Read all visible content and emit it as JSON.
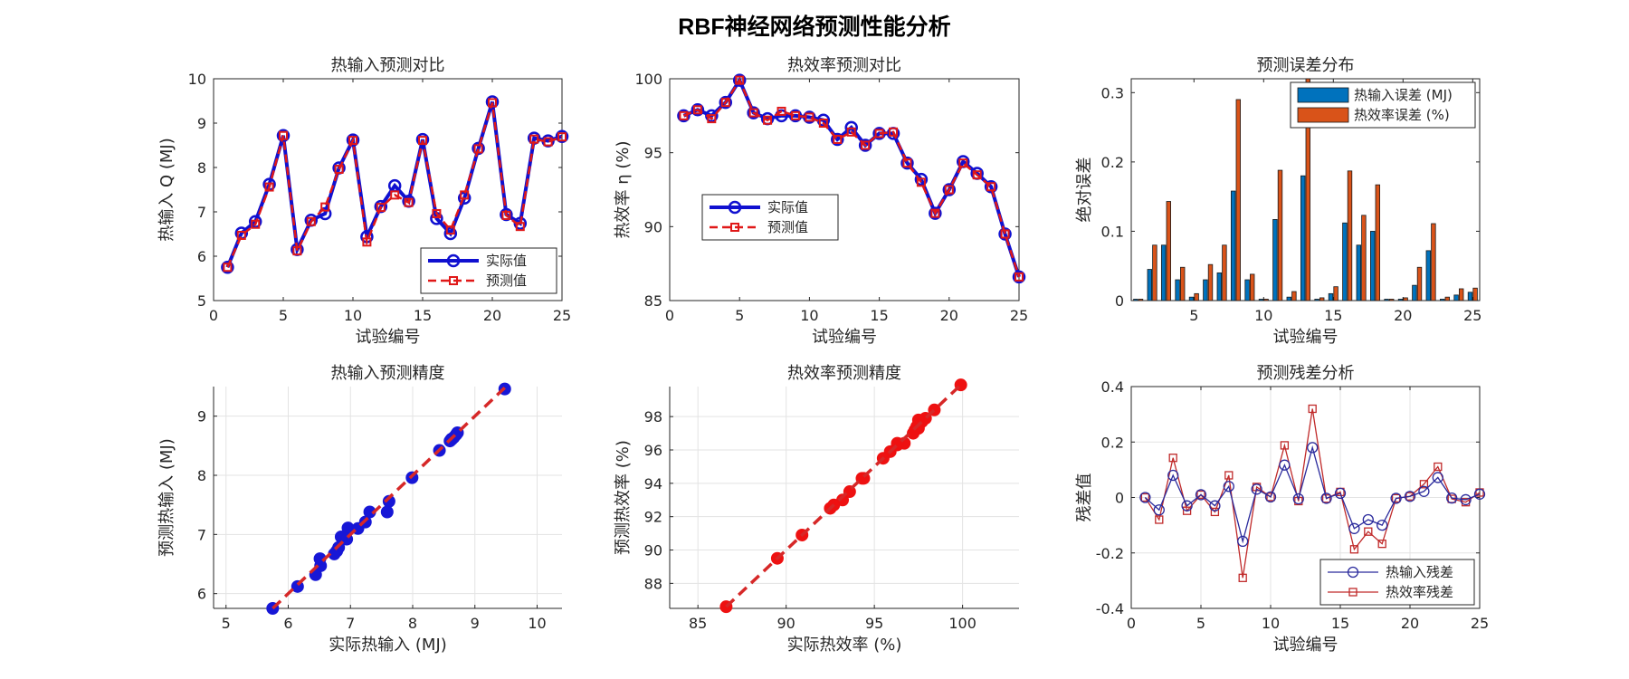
{
  "figure": {
    "title": "RBF神经网络预测性能分析"
  },
  "colors": {
    "blue": "#1010d0",
    "red": "#e01818",
    "edge_blue": "#0072BD",
    "edge_orange": "#D95319",
    "scatter_blue": "#1717d6",
    "scatter_red": "#ee1111",
    "res_blue": "#2a2a9c",
    "res_red": "#c02a2a"
  },
  "chart_data": [
    {
      "id": "p1",
      "type": "line",
      "title": "热输入预测对比",
      "xlabel": "试验编号",
      "ylabel": "热输入 Q (MJ)",
      "xlim": [
        0,
        25
      ],
      "ylim": [
        5,
        10
      ],
      "xticks": [
        0,
        5,
        10,
        15,
        20,
        25
      ],
      "yticks": [
        5,
        6,
        7,
        8,
        9,
        10
      ],
      "legend_position": "bottom-right",
      "x": [
        1,
        2,
        3,
        4,
        5,
        6,
        7,
        8,
        9,
        10,
        11,
        12,
        13,
        14,
        15,
        16,
        17,
        18,
        19,
        20,
        21,
        22,
        23,
        24,
        25
      ],
      "series": [
        {
          "name": "实际值",
          "values": [
            5.75,
            6.52,
            6.78,
            7.62,
            8.72,
            6.15,
            6.81,
            6.96,
            7.99,
            8.62,
            6.44,
            7.12,
            7.59,
            7.24,
            8.63,
            6.85,
            6.51,
            7.31,
            8.43,
            9.48,
            6.94,
            6.74,
            8.66,
            8.6,
            8.7
          ]
        },
        {
          "name": "预测值",
          "values": [
            5.75,
            6.47,
            6.72,
            7.56,
            8.72,
            6.12,
            6.78,
            7.11,
            7.96,
            8.61,
            6.32,
            7.1,
            7.38,
            7.21,
            8.61,
            6.96,
            6.59,
            7.38,
            8.42,
            9.46,
            6.92,
            6.67,
            8.64,
            8.58,
            8.69
          ]
        }
      ]
    },
    {
      "id": "p2",
      "type": "line",
      "title": "热效率预测对比",
      "xlabel": "试验编号",
      "ylabel": "热效率 η (%)",
      "xlim": [
        0,
        25
      ],
      "ylim": [
        85,
        100
      ],
      "xticks": [
        0,
        5,
        10,
        15,
        20,
        25
      ],
      "yticks": [
        85,
        90,
        95,
        100
      ],
      "legend_position": "middle-left",
      "x": [
        1,
        2,
        3,
        4,
        5,
        6,
        7,
        8,
        9,
        10,
        11,
        12,
        13,
        14,
        15,
        16,
        17,
        18,
        19,
        20,
        21,
        22,
        23,
        24,
        25
      ],
      "series": [
        {
          "name": "实际值",
          "values": [
            97.5,
            97.9,
            97.5,
            98.4,
            99.9,
            97.7,
            97.3,
            97.5,
            97.5,
            97.4,
            97.2,
            95.9,
            96.7,
            95.5,
            96.3,
            96.3,
            94.3,
            93.2,
            90.9,
            92.5,
            94.4,
            93.6,
            92.7,
            89.5,
            86.6
          ]
        },
        {
          "name": "预测值",
          "values": [
            97.5,
            97.9,
            97.3,
            98.4,
            99.9,
            97.7,
            97.2,
            97.8,
            97.5,
            97.4,
            97.0,
            95.9,
            96.4,
            95.5,
            96.3,
            96.4,
            94.3,
            93.0,
            90.9,
            92.5,
            94.3,
            93.5,
            92.7,
            89.5,
            86.6
          ]
        }
      ]
    },
    {
      "id": "p3",
      "type": "bar",
      "title": "预测误差分布",
      "xlabel": "试验编号",
      "ylabel": "绝对误差",
      "xlim": [
        0.5,
        25.5
      ],
      "ylim": [
        0,
        0.32
      ],
      "xticks": [
        5,
        10,
        15,
        20,
        25
      ],
      "yticks": [
        0,
        0.1,
        0.2,
        0.3
      ],
      "legend_position": "top-right",
      "x": [
        1,
        2,
        3,
        4,
        5,
        6,
        7,
        8,
        9,
        10,
        11,
        12,
        13,
        14,
        15,
        16,
        17,
        18,
        19,
        20,
        21,
        22,
        23,
        24,
        25
      ],
      "series": [
        {
          "name": "热输入误差 (MJ)",
          "values": [
            0.002,
            0.045,
            0.08,
            0.03,
            0.005,
            0.03,
            0.04,
            0.158,
            0.03,
            0.002,
            0.117,
            0.005,
            0.18,
            0.002,
            0.01,
            0.112,
            0.08,
            0.1,
            0.002,
            0.002,
            0.022,
            0.072,
            0.002,
            0.008,
            0.012
          ]
        },
        {
          "name": "热效率误差 (%)",
          "values": [
            0.002,
            0.08,
            0.143,
            0.048,
            0.01,
            0.052,
            0.08,
            0.29,
            0.038,
            0.002,
            0.188,
            0.013,
            0.32,
            0.004,
            0.02,
            0.187,
            0.123,
            0.167,
            0.002,
            0.004,
            0.048,
            0.111,
            0.005,
            0.017,
            0.018
          ]
        }
      ]
    },
    {
      "id": "p4",
      "type": "scatter",
      "title": "热输入预测精度",
      "xlabel": "实际热输入 (MJ)",
      "ylabel": "预测热输入 (MJ)",
      "xlim": [
        4.8,
        10.4
      ],
      "ylim": [
        5.75,
        9.5
      ],
      "xticks": [
        5,
        6,
        7,
        8,
        9,
        10
      ],
      "yticks": [
        6,
        7,
        8,
        9
      ],
      "ref_line": [
        [
          5.75,
          5.75
        ],
        [
          9.48,
          9.48
        ]
      ],
      "x": [
        5.75,
        6.52,
        6.78,
        7.62,
        8.72,
        6.15,
        6.81,
        6.96,
        7.99,
        8.62,
        6.44,
        7.12,
        7.59,
        7.24,
        8.63,
        6.85,
        6.51,
        7.31,
        8.43,
        9.48,
        6.94,
        6.74,
        8.66,
        8.6,
        8.7
      ],
      "y": [
        5.75,
        6.47,
        6.72,
        7.56,
        8.72,
        6.12,
        6.78,
        7.11,
        7.96,
        8.61,
        6.32,
        7.1,
        7.38,
        7.21,
        8.61,
        6.96,
        6.59,
        7.38,
        8.42,
        9.46,
        6.92,
        6.67,
        8.64,
        8.58,
        8.69
      ]
    },
    {
      "id": "p5",
      "type": "scatter",
      "title": "热效率预测精度",
      "xlabel": "实际热效率 (%)",
      "ylabel": "预测热效率 (%)",
      "xlim": [
        83.4,
        103.2
      ],
      "ylim": [
        86.5,
        99.8
      ],
      "xticks": [
        85,
        90,
        95,
        100
      ],
      "yticks": [
        88,
        90,
        92,
        94,
        96,
        98
      ],
      "ref_line": [
        [
          86.6,
          86.6
        ],
        [
          99.9,
          99.9
        ]
      ],
      "x": [
        97.5,
        97.9,
        97.5,
        98.4,
        99.9,
        97.7,
        97.3,
        97.5,
        97.5,
        97.4,
        97.2,
        95.9,
        96.7,
        95.5,
        96.3,
        96.3,
        94.3,
        93.2,
        90.9,
        92.5,
        94.4,
        93.6,
        92.7,
        89.5,
        86.6
      ],
      "y": [
        97.5,
        97.9,
        97.3,
        98.4,
        99.9,
        97.7,
        97.2,
        97.8,
        97.5,
        97.4,
        97.0,
        95.9,
        96.4,
        95.5,
        96.3,
        96.4,
        94.3,
        93.0,
        90.9,
        92.5,
        94.3,
        93.5,
        92.7,
        89.5,
        86.6
      ]
    },
    {
      "id": "p6",
      "type": "line",
      "title": "预测残差分析",
      "xlabel": "试验编号",
      "ylabel": "残差值",
      "xlim": [
        0,
        25
      ],
      "ylim": [
        -0.4,
        0.4
      ],
      "xticks": [
        0,
        5,
        10,
        15,
        20,
        25
      ],
      "yticks": [
        -0.4,
        -0.2,
        0,
        0.2,
        0.4
      ],
      "legend_position": "bottom-right",
      "x": [
        1,
        2,
        3,
        4,
        5,
        6,
        7,
        8,
        9,
        10,
        11,
        12,
        13,
        14,
        15,
        16,
        17,
        18,
        19,
        20,
        21,
        22,
        23,
        24,
        25
      ],
      "series": [
        {
          "name": "热输入残差",
          "values": [
            0.0,
            -0.045,
            0.08,
            -0.03,
            0.01,
            -0.03,
            0.04,
            -0.158,
            0.03,
            0.002,
            0.117,
            -0.005,
            0.18,
            -0.003,
            0.015,
            -0.112,
            -0.08,
            -0.1,
            -0.003,
            0.004,
            0.022,
            0.072,
            -0.002,
            -0.008,
            0.012
          ]
        },
        {
          "name": "热效率残差",
          "values": [
            0.0,
            -0.08,
            0.143,
            -0.048,
            0.01,
            -0.052,
            0.08,
            -0.29,
            0.038,
            0.002,
            0.188,
            -0.013,
            0.32,
            -0.004,
            0.02,
            -0.187,
            -0.123,
            -0.167,
            -0.003,
            0.004,
            0.048,
            0.111,
            -0.005,
            -0.017,
            0.018
          ]
        }
      ]
    }
  ]
}
